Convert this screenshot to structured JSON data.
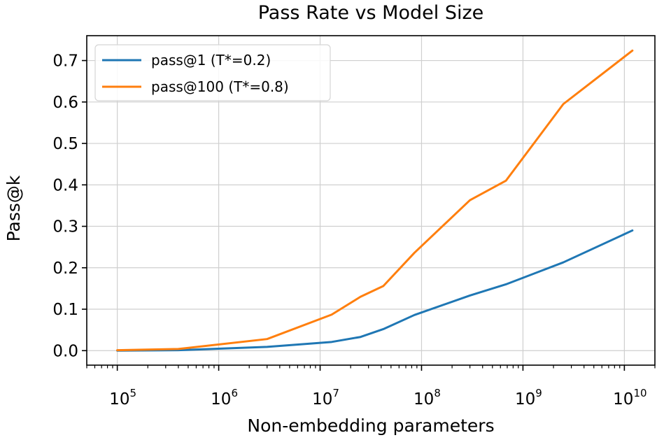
{
  "chart_data": {
    "type": "line",
    "title": "Pass Rate vs Model Size",
    "xlabel": "Non-embedding parameters",
    "ylabel": "Pass@k",
    "xscale": "log",
    "xlim": [
      50000,
      20000000000
    ],
    "ylim": [
      -0.035,
      0.76
    ],
    "grid": true,
    "legend_position": "top-left",
    "x_ticks": [
      {
        "base": "10",
        "exp": "5",
        "value": 100000
      },
      {
        "base": "10",
        "exp": "6",
        "value": 1000000
      },
      {
        "base": "10",
        "exp": "7",
        "value": 10000000
      },
      {
        "base": "10",
        "exp": "8",
        "value": 100000000
      },
      {
        "base": "10",
        "exp": "9",
        "value": 1000000000
      },
      {
        "base": "10",
        "exp": "10",
        "value": 10000000000
      }
    ],
    "y_ticks": [
      {
        "label": "0.0",
        "value": 0.0
      },
      {
        "label": "0.1",
        "value": 0.1
      },
      {
        "label": "0.2",
        "value": 0.2
      },
      {
        "label": "0.3",
        "value": 0.3
      },
      {
        "label": "0.4",
        "value": 0.4
      },
      {
        "label": "0.5",
        "value": 0.5
      },
      {
        "label": "0.6",
        "value": 0.6
      },
      {
        "label": "0.7",
        "value": 0.7
      }
    ],
    "series": [
      {
        "name": "pass@1 (T*=0.2)",
        "color": "#1f77b4",
        "x": [
          100000,
          400000,
          3000000,
          13000000,
          25000000,
          42000000,
          85000000,
          300000000,
          679000000,
          2500000000,
          12000000000
        ],
        "y": [
          0.0,
          0.001,
          0.009,
          0.021,
          0.033,
          0.052,
          0.086,
          0.133,
          0.16,
          0.213,
          0.29
        ]
      },
      {
        "name": "pass@100 (T*=0.8)",
        "color": "#ff7f0e",
        "x": [
          100000,
          400000,
          3000000,
          13000000,
          25000000,
          42000000,
          85000000,
          300000000,
          679000000,
          2500000000,
          12000000000
        ],
        "y": [
          0.001,
          0.004,
          0.028,
          0.087,
          0.13,
          0.156,
          0.236,
          0.363,
          0.41,
          0.595,
          0.724
        ]
      }
    ]
  }
}
